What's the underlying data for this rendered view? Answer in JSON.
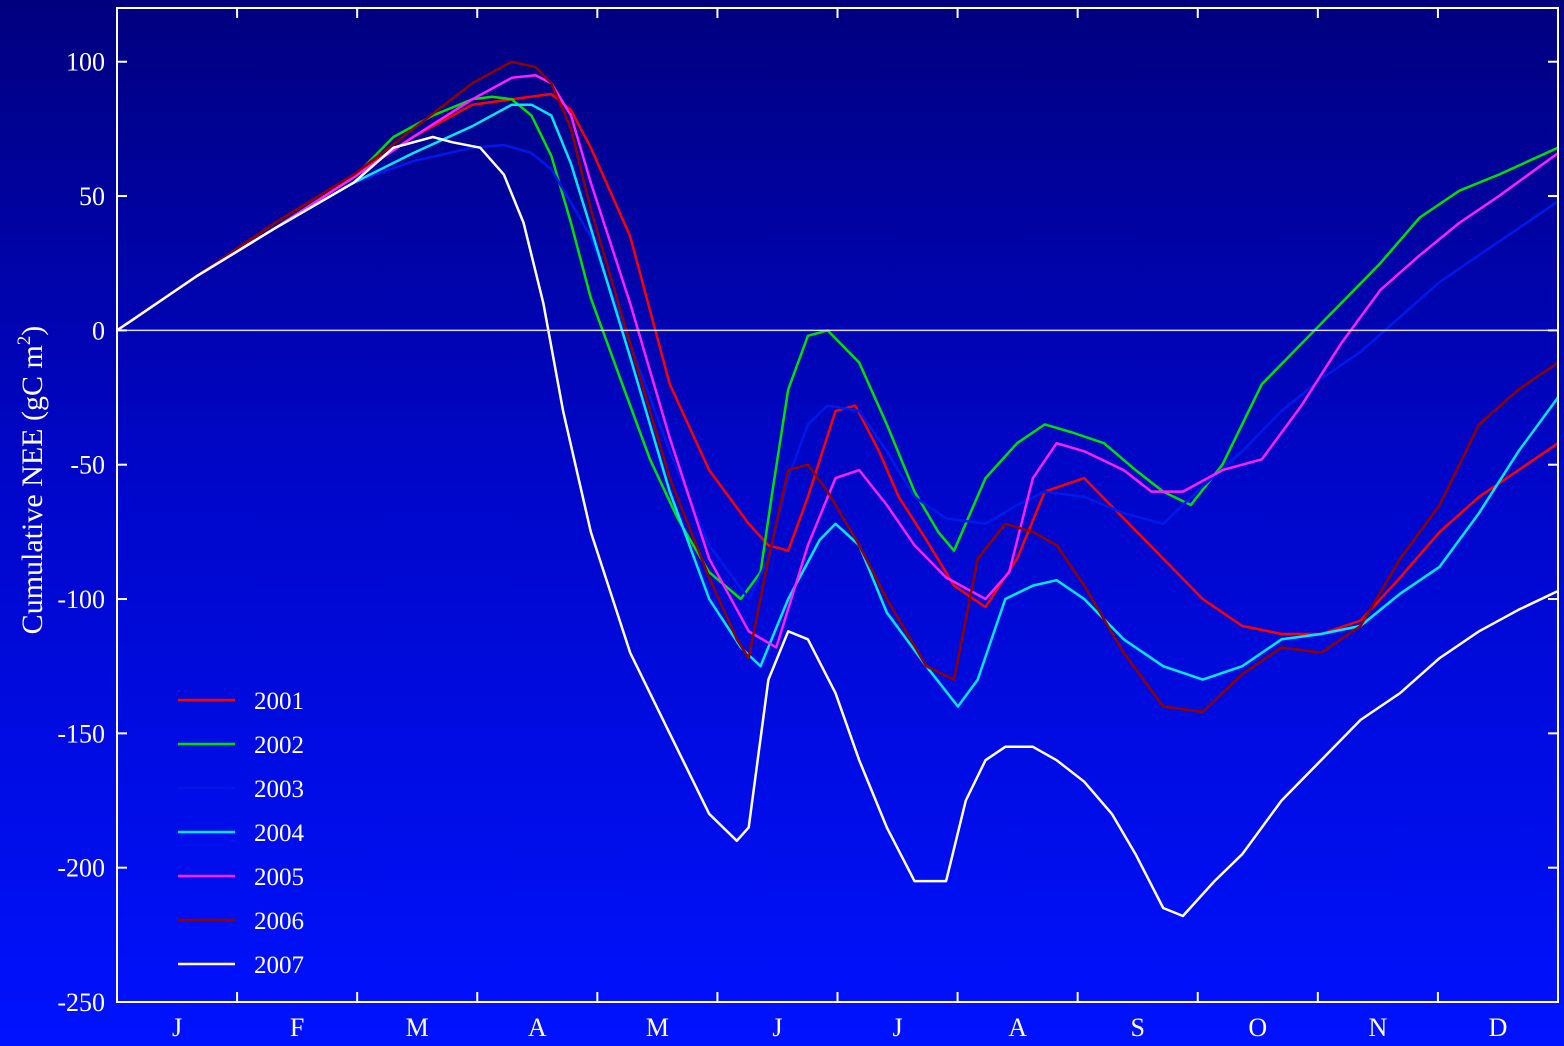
{
  "chart_data": {
    "type": "line",
    "xlabel": "",
    "ylabel": "Cumulative NEE (gC m",
    "ylabel_sup": "2",
    "ylabel_close": ")",
    "xlim": [
      0,
      365
    ],
    "ylim": [
      -250,
      120
    ],
    "yticks": [
      100,
      50,
      0,
      -50,
      -100,
      -150,
      -200,
      -250
    ],
    "month_labels": [
      "J",
      "F",
      "M",
      "A",
      "M",
      "J",
      "J",
      "A",
      "S",
      "O",
      "N",
      "D"
    ],
    "grid": false,
    "zero_line": true,
    "legend_position": "bottom-left",
    "series": [
      {
        "name": "2001",
        "color": "#ff0000",
        "x": [
          0,
          20,
          40,
          60,
          75,
          90,
          100,
          110,
          115,
          120,
          130,
          140,
          150,
          160,
          165,
          170,
          175,
          182,
          187,
          193,
          198,
          205,
          212,
          220,
          228,
          235,
          245,
          255,
          265,
          275,
          285,
          295,
          305,
          315,
          325,
          335,
          345,
          355,
          365
        ],
        "y": [
          0,
          20,
          40,
          58,
          72,
          84,
          86,
          88,
          82,
          68,
          35,
          -20,
          -52,
          -72,
          -80,
          -82,
          -62,
          -30,
          -28,
          -45,
          -62,
          -78,
          -95,
          -103,
          -85,
          -60,
          -55,
          -70,
          -85,
          -100,
          -110,
          -113,
          -113,
          -108,
          -92,
          -75,
          -62,
          -52,
          -42
        ]
      },
      {
        "name": "2002",
        "color": "#00e000",
        "x": [
          0,
          20,
          40,
          60,
          70,
          80,
          90,
          95,
          100,
          105,
          110,
          115,
          120,
          128,
          135,
          142,
          150,
          158,
          163,
          166,
          170,
          175,
          180,
          188,
          195,
          202,
          208,
          212,
          220,
          228,
          235,
          242,
          250,
          258,
          265,
          272,
          280,
          290,
          300,
          310,
          320,
          330,
          340,
          350,
          365
        ],
        "y": [
          0,
          20,
          38,
          57,
          72,
          80,
          86,
          87,
          86,
          80,
          65,
          40,
          12,
          -20,
          -48,
          -70,
          -90,
          -100,
          -90,
          -60,
          -22,
          -2,
          0,
          -12,
          -35,
          -60,
          -75,
          -82,
          -55,
          -42,
          -35,
          -38,
          -42,
          -52,
          -60,
          -65,
          -50,
          -20,
          -5,
          10,
          25,
          42,
          52,
          58,
          68
        ]
      },
      {
        "name": "2003",
        "color": "#0018e8",
        "x": [
          0,
          20,
          40,
          60,
          75,
          90,
          98,
          105,
          110,
          120,
          130,
          140,
          150,
          160,
          165,
          170,
          175,
          180,
          188,
          195,
          202,
          210,
          220,
          228,
          235,
          245,
          255,
          265,
          275,
          285,
          295,
          305,
          315,
          325,
          335,
          345,
          355,
          365
        ],
        "y": [
          0,
          20,
          38,
          55,
          63,
          68,
          69,
          66,
          60,
          35,
          -5,
          -45,
          -80,
          -100,
          -85,
          -55,
          -35,
          -28,
          -30,
          -45,
          -62,
          -70,
          -72,
          -65,
          -60,
          -62,
          -68,
          -72,
          -58,
          -45,
          -30,
          -18,
          -8,
          5,
          18,
          28,
          38,
          48
        ]
      },
      {
        "name": "2004",
        "color": "#00e8ff",
        "x": [
          0,
          20,
          40,
          60,
          75,
          90,
          100,
          105,
          110,
          115,
          120,
          130,
          140,
          150,
          158,
          163,
          170,
          178,
          182,
          188,
          195,
          205,
          213,
          218,
          225,
          232,
          238,
          245,
          255,
          265,
          275,
          285,
          295,
          305,
          315,
          325,
          335,
          345,
          355,
          365
        ],
        "y": [
          0,
          20,
          38,
          55,
          66,
          76,
          84,
          84,
          80,
          62,
          38,
          -10,
          -60,
          -100,
          -118,
          -125,
          -100,
          -78,
          -72,
          -80,
          -105,
          -125,
          -140,
          -130,
          -100,
          -95,
          -93,
          -100,
          -115,
          -125,
          -130,
          -125,
          -115,
          -113,
          -110,
          -98,
          -88,
          -68,
          -45,
          -25
        ]
      },
      {
        "name": "2005",
        "color": "#ff20ff",
        "x": [
          0,
          20,
          40,
          60,
          75,
          90,
          100,
          106,
          110,
          115,
          120,
          130,
          140,
          150,
          160,
          167,
          175,
          182,
          188,
          195,
          202,
          210,
          220,
          226,
          232,
          238,
          245,
          255,
          262,
          270,
          280,
          290,
          300,
          310,
          320,
          330,
          340,
          350,
          365
        ],
        "y": [
          0,
          20,
          38,
          57,
          72,
          86,
          94,
          95,
          92,
          80,
          55,
          10,
          -40,
          -85,
          -112,
          -118,
          -80,
          -55,
          -52,
          -65,
          -80,
          -92,
          -100,
          -90,
          -55,
          -42,
          -45,
          -52,
          -60,
          -60,
          -52,
          -48,
          -28,
          -5,
          15,
          28,
          40,
          50,
          66
        ]
      },
      {
        "name": "2006",
        "color": "#900000",
        "x": [
          0,
          20,
          40,
          60,
          75,
          90,
          100,
          106,
          110,
          115,
          120,
          130,
          140,
          150,
          157,
          160,
          165,
          170,
          175,
          180,
          188,
          195,
          205,
          212,
          218,
          225,
          232,
          238,
          245,
          255,
          265,
          275,
          285,
          295,
          305,
          315,
          325,
          335,
          345,
          355,
          365
        ],
        "y": [
          0,
          20,
          40,
          58,
          75,
          92,
          100,
          98,
          92,
          75,
          45,
          -5,
          -55,
          -92,
          -115,
          -122,
          -85,
          -52,
          -50,
          -60,
          -80,
          -100,
          -125,
          -130,
          -85,
          -72,
          -75,
          -80,
          -95,
          -120,
          -140,
          -142,
          -128,
          -118,
          -120,
          -110,
          -85,
          -65,
          -35,
          -22,
          -12
        ]
      },
      {
        "name": "2007",
        "color": "#ffffff",
        "x": [
          0,
          20,
          40,
          60,
          70,
          80,
          85,
          92,
          98,
          103,
          108,
          113,
          120,
          130,
          140,
          150,
          157,
          160,
          165,
          170,
          175,
          182,
          188,
          195,
          202,
          210,
          215,
          220,
          225,
          232,
          238,
          245,
          252,
          258,
          265,
          270,
          278,
          285,
          295,
          305,
          315,
          325,
          335,
          345,
          355,
          365
        ],
        "y": [
          0,
          20,
          38,
          55,
          68,
          72,
          70,
          68,
          58,
          40,
          10,
          -30,
          -75,
          -120,
          -150,
          -180,
          -190,
          -185,
          -130,
          -112,
          -115,
          -135,
          -160,
          -185,
          -205,
          -205,
          -175,
          -160,
          -155,
          -155,
          -160,
          -168,
          -180,
          -195,
          -215,
          -218,
          -205,
          -195,
          -175,
          -160,
          -145,
          -135,
          -122,
          -112,
          -104,
          -97
        ]
      }
    ]
  }
}
